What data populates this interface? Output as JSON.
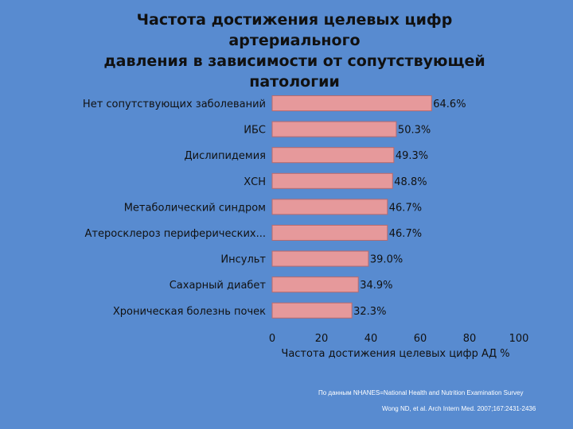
{
  "slide": {
    "title_lines": [
      "Частота достижения целевых цифр артериального",
      "давления в зависимости от сопутствующей",
      "патологии"
    ],
    "source_line1": "По данным NHANES=National Health and Nutrition Examination Survey",
    "source_line2": "Wong ND, et al. Arch Intern Med. 2007;167:2431-2436"
  },
  "colors": {
    "background": "#588bd0",
    "bar_fill": "#e6999b",
    "bar_stroke": "#b76a6e",
    "text": "#111111"
  },
  "chart_data": {
    "type": "bar",
    "orientation": "horizontal",
    "categories": [
      "Нет сопутствующих заболеваний",
      "ИБС",
      "Дислипидемия",
      "ХСН",
      "Метаболический синдром",
      "Атеросклероз периферических...",
      "Инсульт",
      "Сахарный диабет",
      "Хроническая болезнь почек"
    ],
    "values": [
      64.6,
      50.3,
      49.3,
      48.8,
      46.7,
      46.7,
      39.0,
      34.9,
      32.3
    ],
    "data_labels": [
      "64.6%",
      "50.3%",
      "49.3%",
      "48.8%",
      "46.7%",
      "46.7%",
      "39.0%",
      "34.9%",
      "32.3%"
    ],
    "xlabel": "Частота достижения целевых цифр АД %",
    "xlim": [
      0,
      100
    ],
    "xticks": [
      "0",
      "20",
      "40",
      "60",
      "80",
      "100"
    ],
    "grid": false,
    "legend": false
  }
}
